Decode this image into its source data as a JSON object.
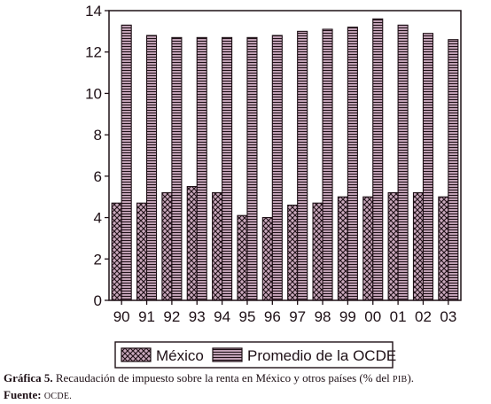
{
  "chart_data": {
    "type": "bar",
    "categories": [
      "90",
      "91",
      "92",
      "93",
      "94",
      "95",
      "96",
      "97",
      "98",
      "99",
      "00",
      "01",
      "02",
      "03"
    ],
    "series": [
      {
        "name": "México",
        "values": [
          4.7,
          4.7,
          5.2,
          5.5,
          5.2,
          4.1,
          4.0,
          4.6,
          4.7,
          5.0,
          5.0,
          5.2,
          5.2,
          5.0
        ],
        "pattern": "crosshatch"
      },
      {
        "name": "Promedio de la OCDE",
        "values": [
          13.3,
          12.8,
          12.7,
          12.7,
          12.7,
          12.7,
          12.8,
          13.0,
          13.1,
          13.2,
          13.6,
          13.3,
          12.9,
          12.6
        ],
        "pattern": "horizontal-lines"
      }
    ],
    "ylim": [
      0,
      14
    ],
    "yticks": [
      "0",
      "2",
      "4",
      "6",
      "8",
      "10",
      "12",
      "14"
    ],
    "grid": false,
    "legend_position": "bottom",
    "colors": {
      "ink": "#1e1016",
      "fill": "#c9a8bc"
    }
  },
  "caption": {
    "graph_label": "Gráfica 5.",
    "graph_text": "Recaudación de impuesto sobre la renta en México y otros países (% del",
    "graph_abbr": "PIB",
    "graph_end": ").",
    "source_label": "Fuente:",
    "source_value": "OCDE."
  }
}
